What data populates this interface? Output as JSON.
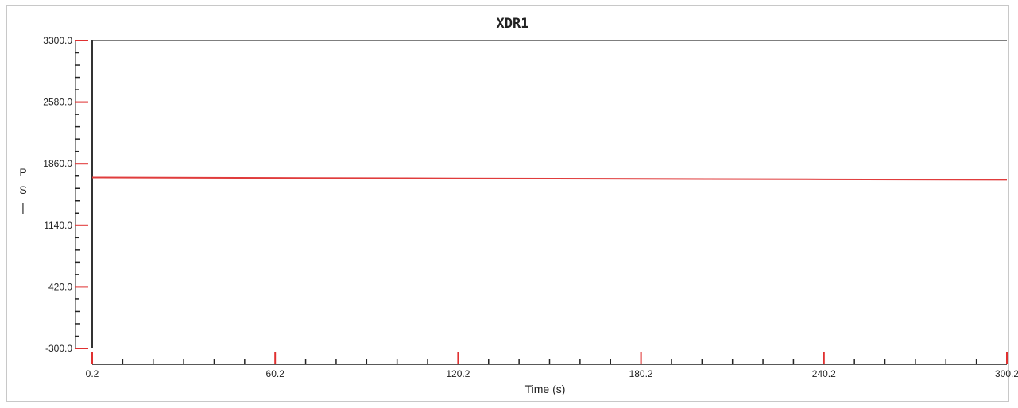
{
  "chart_data": {
    "type": "line",
    "title": "XDR1",
    "xlabel": "Time (s)",
    "ylabel": "PSI",
    "xlim": [
      0.2,
      300.2
    ],
    "ylim": [
      -300.0,
      3300.0
    ],
    "x_tick_labels": [
      "0.2",
      "60.2",
      "120.2",
      "180.2",
      "240.2",
      "300.2"
    ],
    "y_tick_labels": [
      "3300.0",
      "2580.0",
      "1860.0",
      "1140.0",
      "420.0",
      "-300.0"
    ],
    "series": [
      {
        "color": "#e03c3c",
        "x": [
          0.2,
          60.2,
          120.2,
          180.2,
          240.2,
          300.2
        ],
        "y": [
          1700,
          1694,
          1688,
          1683,
          1678,
          1673
        ]
      }
    ],
    "grid": false,
    "legend": "none"
  },
  "colors": {
    "axis_red": "#e03030",
    "axis_dark": "#222222",
    "frame_gray": "#c8c8c8"
  }
}
